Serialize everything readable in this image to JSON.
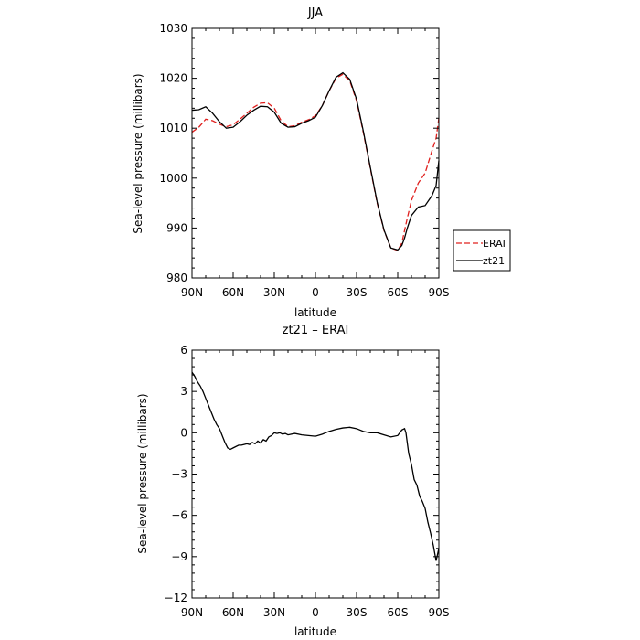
{
  "chart_data": [
    {
      "type": "line",
      "title": "JJA",
      "xlabel": "latitude",
      "ylabel": "Sea-level pressure (millibars)",
      "xlim": [
        90,
        -90
      ],
      "ylim": [
        980,
        1030
      ],
      "xticks": [
        90,
        60,
        30,
        0,
        -30,
        -60,
        -90
      ],
      "xtick_labels": [
        "90N",
        "60N",
        "30N",
        "0",
        "30S",
        "60S",
        "90S"
      ],
      "yticks": [
        980,
        990,
        1000,
        1010,
        1020,
        1030
      ],
      "ytick_labels": [
        "980",
        "990",
        "1000",
        "1010",
        "1020",
        "1030"
      ],
      "grid": false,
      "legend_position": "right",
      "series": [
        {
          "name": "ERAI",
          "color": "#e0201e",
          "dash": "dashed",
          "x": [
            90,
            85,
            80,
            75,
            70,
            65,
            60,
            55,
            50,
            45,
            40,
            35,
            30,
            25,
            20,
            15,
            10,
            5,
            0,
            -5,
            -10,
            -15,
            -20,
            -25,
            -30,
            -35,
            -40,
            -45,
            -50,
            -55,
            -60,
            -63,
            -65,
            -67,
            -70,
            -75,
            -80,
            -85,
            -88,
            -90
          ],
          "y": [
            1009.2,
            1010.2,
            1011.8,
            1011.5,
            1010.8,
            1010.3,
            1010.7,
            1011.8,
            1013.0,
            1014.2,
            1015.0,
            1015.1,
            1014.0,
            1011.5,
            1010.3,
            1010.5,
            1011.2,
            1011.7,
            1012.5,
            1014.5,
            1017.5,
            1020.0,
            1020.8,
            1019.5,
            1015.5,
            1009.0,
            1002.0,
            995.0,
            989.5,
            986.0,
            985.5,
            987.0,
            989.5,
            992.0,
            995.5,
            999.0,
            1001.0,
            1005.5,
            1008.0,
            1012.0
          ]
        },
        {
          "name": "zt21",
          "color": "#000000",
          "dash": "solid",
          "x": [
            90,
            85,
            80,
            75,
            70,
            65,
            60,
            55,
            50,
            45,
            40,
            35,
            30,
            25,
            20,
            15,
            10,
            5,
            0,
            -5,
            -10,
            -15,
            -20,
            -25,
            -30,
            -35,
            -40,
            -45,
            -50,
            -55,
            -60,
            -63,
            -65,
            -67,
            -70,
            -75,
            -80,
            -85,
            -88,
            -90
          ],
          "y": [
            1013.6,
            1013.7,
            1014.3,
            1013.0,
            1011.3,
            1010.0,
            1010.2,
            1011.3,
            1012.6,
            1013.6,
            1014.4,
            1014.3,
            1013.2,
            1011.0,
            1010.2,
            1010.3,
            1011.0,
            1011.5,
            1012.2,
            1014.5,
            1017.5,
            1020.2,
            1021.1,
            1019.8,
            1015.8,
            1009.3,
            1002.2,
            995.2,
            989.6,
            986.0,
            985.6,
            986.5,
            988.0,
            990.0,
            992.5,
            994.2,
            994.5,
            996.5,
            998.5,
            1003.5
          ]
        }
      ]
    },
    {
      "type": "line",
      "title": "zt21 – ERAI",
      "xlabel": "latitude",
      "ylabel": "Sea-level pressure (millibars)",
      "xlim": [
        90,
        -90
      ],
      "ylim": [
        -12,
        6
      ],
      "xticks": [
        90,
        60,
        30,
        0,
        -30,
        -60,
        -90
      ],
      "xtick_labels": [
        "90N",
        "60N",
        "30N",
        "0",
        "30S",
        "60S",
        "90S"
      ],
      "yticks": [
        -12,
        -9,
        -6,
        -3,
        0,
        3,
        6
      ],
      "ytick_labels": [
        "−12",
        "−9",
        "−6",
        "−3",
        "0",
        "3",
        "6"
      ],
      "grid": false,
      "series": [
        {
          "color": "#000000",
          "dash": "solid",
          "x": [
            90,
            88,
            86,
            84,
            82,
            80,
            78,
            76,
            74,
            72,
            70,
            68,
            66,
            64,
            62,
            60,
            58,
            56,
            54,
            52,
            50,
            48,
            46,
            44,
            42,
            40,
            38,
            36,
            34,
            32,
            30,
            28,
            26,
            24,
            22,
            20,
            15,
            10,
            5,
            0,
            -5,
            -10,
            -15,
            -20,
            -25,
            -30,
            -35,
            -40,
            -45,
            -50,
            -55,
            -60,
            -63,
            -65,
            -66,
            -68,
            -70,
            -72,
            -74,
            -76,
            -78,
            -80,
            -82,
            -84,
            -86,
            -88,
            -90
          ],
          "y": [
            4.4,
            4.1,
            3.7,
            3.4,
            3.0,
            2.5,
            2.0,
            1.5,
            1.0,
            0.6,
            0.3,
            -0.2,
            -0.7,
            -1.1,
            -1.2,
            -1.1,
            -1.0,
            -0.9,
            -0.9,
            -0.85,
            -0.8,
            -0.85,
            -0.7,
            -0.8,
            -0.6,
            -0.75,
            -0.5,
            -0.6,
            -0.3,
            -0.2,
            0.0,
            -0.05,
            0.0,
            -0.1,
            -0.05,
            -0.15,
            -0.05,
            -0.15,
            -0.2,
            -0.25,
            -0.1,
            0.1,
            0.25,
            0.35,
            0.4,
            0.3,
            0.1,
            0.0,
            0.0,
            -0.15,
            -0.3,
            -0.2,
            0.2,
            0.3,
            0.0,
            -1.5,
            -2.3,
            -3.4,
            -3.8,
            -4.6,
            -5.0,
            -5.5,
            -6.5,
            -7.3,
            -8.2,
            -9.3,
            -8.4
          ]
        }
      ]
    }
  ]
}
